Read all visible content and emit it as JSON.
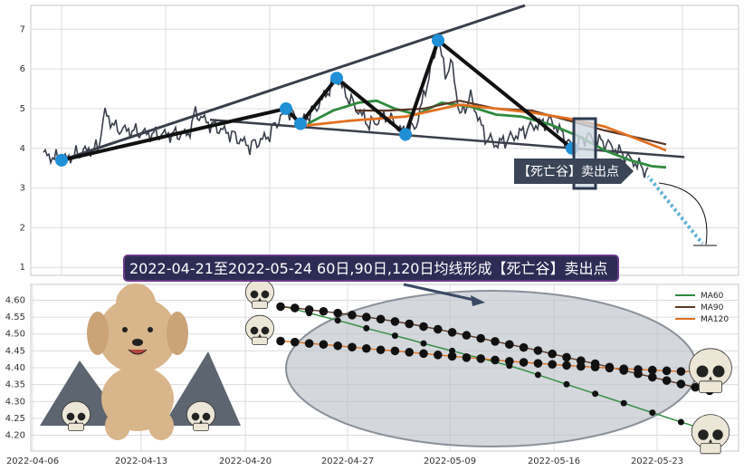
{
  "banner": "2022-04-21至2022-05-24 60日,90日,120日均线形成【死亡谷】卖出点",
  "sign": "【死亡谷】卖出点",
  "colors": {
    "price": "#3a3f4b",
    "trend": "#111111",
    "upper_line": "#3a3f4b",
    "pivot": "#1f8fd6",
    "ma60": "#2e8b3e",
    "ma90": "#5a3826",
    "ma120": "#e07020",
    "sign_bg": "#3a4558",
    "banner_bg": "#2c2c54",
    "banner_border": "#6a3a8a",
    "ellipse": "#aab0ba"
  },
  "chart_data": [
    {
      "type": "line",
      "ylim": [
        0.8,
        7.6
      ],
      "yticks": [
        1,
        2,
        3,
        4,
        5,
        6,
        7
      ],
      "grid": true,
      "pivots": [
        {
          "t": 5,
          "y": 3.7
        },
        {
          "t": 67,
          "y": 5.0
        },
        {
          "t": 71,
          "y": 4.62
        },
        {
          "t": 81,
          "y": 5.77
        },
        {
          "t": 100,
          "y": 4.35
        },
        {
          "t": 109,
          "y": 6.72
        },
        {
          "t": 146,
          "y": 4.0
        }
      ],
      "upper_line": [
        {
          "t": 5,
          "y": 3.7
        },
        {
          "t": 133,
          "y": 7.6
        }
      ],
      "lower_line": [
        {
          "t": 46,
          "y": 4.72
        },
        {
          "t": 177,
          "y": 3.78
        }
      ],
      "forecast": [
        {
          "t": 167,
          "y": 3.3
        },
        {
          "t": 182,
          "y": 1.6
        }
      ]
    },
    {
      "type": "line",
      "ylim": [
        4.18,
        4.62
      ],
      "yticks": [
        "4.20",
        "4.25",
        "4.30",
        "4.35",
        "4.40",
        "4.45",
        "4.50",
        "4.55",
        "4.60"
      ],
      "xticks": [
        "2022-04-06",
        "2022-04-13",
        "2022-04-20",
        "2022-04-27",
        "2022-05-09",
        "2022-05-16",
        "2022-05-23"
      ],
      "legend": "top-right",
      "series": [
        {
          "name": "MA60",
          "values": [
            4.584,
            4.573,
            4.562,
            4.551,
            4.54,
            4.529,
            4.517,
            4.506,
            4.495,
            4.484,
            4.472,
            4.461,
            4.45,
            4.439,
            4.428,
            4.417,
            4.406,
            4.393,
            4.379,
            4.365,
            4.351,
            4.337,
            4.323,
            4.309,
            4.295,
            4.281,
            4.267,
            4.253,
            4.239,
            4.226,
            4.212
          ]
        },
        {
          "name": "MA90",
          "values": [
            4.581,
            4.577,
            4.572,
            4.567,
            4.562,
            4.556,
            4.55,
            4.544,
            4.537,
            4.53,
            4.522,
            4.514,
            4.505,
            4.496,
            4.487,
            4.478,
            4.469,
            4.46,
            4.451,
            4.441,
            4.431,
            4.421,
            4.412,
            4.402,
            4.392,
            4.382,
            4.372,
            4.362,
            4.352,
            4.342,
            4.332
          ]
        },
        {
          "name": "MA120",
          "values": [
            4.479,
            4.476,
            4.472,
            4.469,
            4.465,
            4.461,
            4.457,
            4.453,
            4.45,
            4.446,
            4.442,
            4.438,
            4.434,
            4.43,
            4.427,
            4.423,
            4.419,
            4.416,
            4.413,
            4.41,
            4.407,
            4.404,
            4.402,
            4.399,
            4.397,
            4.395,
            4.393,
            4.391,
            4.389,
            4.388,
            4.387
          ]
        }
      ]
    }
  ]
}
